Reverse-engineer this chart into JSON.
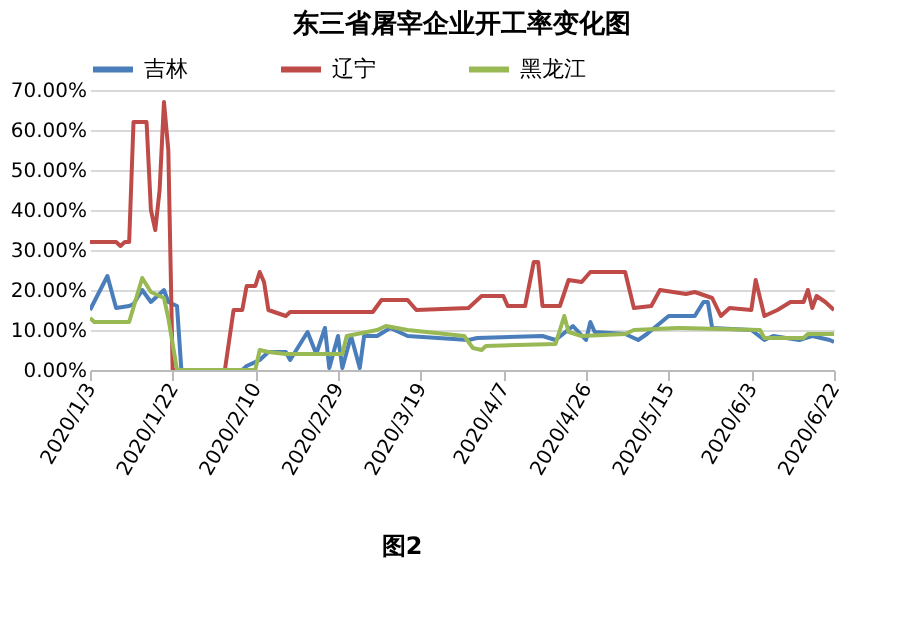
{
  "chart_data": {
    "type": "line",
    "title": "东三省屠宰企业开工率变化图",
    "annotations": [
      "图2"
    ],
    "xlim": [
      "2020-01-03",
      "2020-06-22"
    ],
    "xticks": [
      {
        "value": "2020-01-03",
        "label": "2020/1/3"
      },
      {
        "value": "2020-01-22",
        "label": "2020/1/22"
      },
      {
        "value": "2020-02-10",
        "label": "2020/2/10"
      },
      {
        "value": "2020-02-29",
        "label": "2020/2/29"
      },
      {
        "value": "2020-03-19",
        "label": "2020/3/19"
      },
      {
        "value": "2020-04-07",
        "label": "2020/4/7"
      },
      {
        "value": "2020-04-26",
        "label": "2020/4/26"
      },
      {
        "value": "2020-05-15",
        "label": "2020/5/15"
      },
      {
        "value": "2020-06-03",
        "label": "2020/6/3"
      },
      {
        "value": "2020-06-22",
        "label": "2020/6/22"
      }
    ],
    "ylim": [
      0,
      70
    ],
    "yticks": [
      {
        "value": 0,
        "label": "0.00%"
      },
      {
        "value": 10,
        "label": "10.00%"
      },
      {
        "value": 20,
        "label": "20.00%"
      },
      {
        "value": 30,
        "label": "30.00%"
      },
      {
        "value": 40,
        "label": "40.00%"
      },
      {
        "value": 50,
        "label": "50.00%"
      },
      {
        "value": 60,
        "label": "60.00%"
      },
      {
        "value": 70,
        "label": "70.00%"
      }
    ],
    "grid": "y",
    "legend": "top",
    "marker": "none",
    "line_style": "solid",
    "series": [
      {
        "name": "吉林",
        "color": "#4a7ebb",
        "x": [
          "2020-01-03",
          "2020-01-07",
          "2020-01-09",
          "2020-01-12",
          "2020-01-13",
          "2020-01-15",
          "2020-01-17",
          "2020-01-20",
          "2020-01-21",
          "2020-01-23",
          "2020-01-24",
          "2020-02-07",
          "2020-02-08",
          "2020-02-11",
          "2020-02-13",
          "2020-02-17",
          "2020-02-18",
          "2020-02-22",
          "2020-02-24",
          "2020-02-26",
          "2020-02-27",
          "2020-02-29",
          "2020-03-01",
          "2020-03-03",
          "2020-03-05",
          "2020-03-06",
          "2020-03-09",
          "2020-03-12",
          "2020-03-16",
          "2020-03-23",
          "2020-03-30",
          "2020-04-01",
          "2020-04-16",
          "2020-04-19",
          "2020-04-23",
          "2020-04-26",
          "2020-04-27",
          "2020-04-28",
          "2020-05-05",
          "2020-05-08",
          "2020-05-10",
          "2020-05-15",
          "2020-05-21",
          "2020-05-23",
          "2020-05-24",
          "2020-05-25",
          "2020-06-03",
          "2020-06-06",
          "2020-06-08",
          "2020-06-14",
          "2020-06-17",
          "2020-06-21",
          "2020-06-22"
        ],
        "values": [
          15,
          23.5,
          15.5,
          16,
          16.5,
          20,
          17,
          20,
          17,
          16,
          0,
          0,
          1,
          2.5,
          4.5,
          4.5,
          2.5,
          9.5,
          4,
          10.5,
          0.5,
          8.5,
          0.5,
          8.5,
          0.5,
          8.5,
          8.5,
          10.5,
          8.5,
          8,
          7.5,
          8,
          8.5,
          7.5,
          11,
          7.5,
          12,
          9.5,
          9,
          7.5,
          9,
          13.5,
          13.5,
          17,
          17,
          10.5,
          10,
          7.5,
          8.5,
          7.5,
          8.5,
          7.5,
          7
        ]
      },
      {
        "name": "辽宁",
        "color": "#be4b48",
        "x": [
          "2020-01-03",
          "2020-01-09",
          "2020-01-10",
          "2020-01-11",
          "2020-01-12",
          "2020-01-13",
          "2020-01-16",
          "2020-01-17",
          "2020-01-18",
          "2020-01-19",
          "2020-01-20",
          "2020-01-21",
          "2020-01-22",
          "2020-02-03",
          "2020-02-05",
          "2020-02-07",
          "2020-02-08",
          "2020-02-10",
          "2020-02-11",
          "2020-02-12",
          "2020-02-13",
          "2020-02-17",
          "2020-02-18",
          "2020-02-29",
          "2020-03-08",
          "2020-03-10",
          "2020-03-16",
          "2020-03-18",
          "2020-03-30",
          "2020-04-02",
          "2020-04-07",
          "2020-04-08",
          "2020-04-12",
          "2020-04-14",
          "2020-04-15",
          "2020-04-16",
          "2020-04-20",
          "2020-04-22",
          "2020-04-25",
          "2020-04-27",
          "2020-05-05",
          "2020-05-07",
          "2020-05-11",
          "2020-05-13",
          "2020-05-19",
          "2020-05-21",
          "2020-05-25",
          "2020-05-27",
          "2020-05-29",
          "2020-06-03",
          "2020-06-04",
          "2020-06-06",
          "2020-06-09",
          "2020-06-12",
          "2020-06-15",
          "2020-06-16",
          "2020-06-17",
          "2020-06-18",
          "2020-06-20",
          "2020-06-22"
        ],
        "values": [
          32,
          32,
          31,
          32,
          32,
          62,
          62,
          40,
          35,
          45,
          67,
          55,
          0,
          0,
          15,
          15,
          21,
          21,
          24.5,
          22,
          15,
          13.5,
          14.5,
          14.5,
          14.5,
          17.5,
          17.5,
          15,
          15.5,
          18.5,
          18.5,
          16,
          16,
          27,
          27,
          16,
          16,
          22.5,
          22,
          24.5,
          24.5,
          15.5,
          16,
          20,
          19,
          19.5,
          18,
          13.5,
          15.5,
          15,
          22.5,
          13.5,
          15,
          17,
          17,
          20,
          15.5,
          18.5,
          17,
          15
        ]
      },
      {
        "name": "黑龙江",
        "color": "#98b954",
        "x": [
          "2020-01-03",
          "2020-01-04",
          "2020-01-12",
          "2020-01-15",
          "2020-01-17",
          "2020-01-20",
          "2020-01-21",
          "2020-01-23",
          "2020-02-10",
          "2020-02-11",
          "2020-02-13",
          "2020-02-17",
          "2020-03-01",
          "2020-03-02",
          "2020-03-09",
          "2020-03-11",
          "2020-03-16",
          "2020-03-29",
          "2020-03-31",
          "2020-04-02",
          "2020-04-03",
          "2020-04-19",
          "2020-04-21",
          "2020-04-22",
          "2020-04-25",
          "2020-05-05",
          "2020-05-07",
          "2020-05-17",
          "2020-05-18",
          "2020-06-05",
          "2020-06-06",
          "2020-06-15",
          "2020-06-16",
          "2020-06-22"
        ],
        "values": [
          13,
          12,
          12,
          23,
          19.5,
          18,
          13,
          0,
          0,
          5,
          4.5,
          4,
          4,
          8.5,
          10,
          11,
          10,
          8.5,
          5.5,
          5,
          6,
          6.5,
          13.5,
          9.5,
          8.5,
          9,
          10,
          10.5,
          10.5,
          10,
          8,
          8,
          9,
          9
        ]
      }
    ]
  }
}
